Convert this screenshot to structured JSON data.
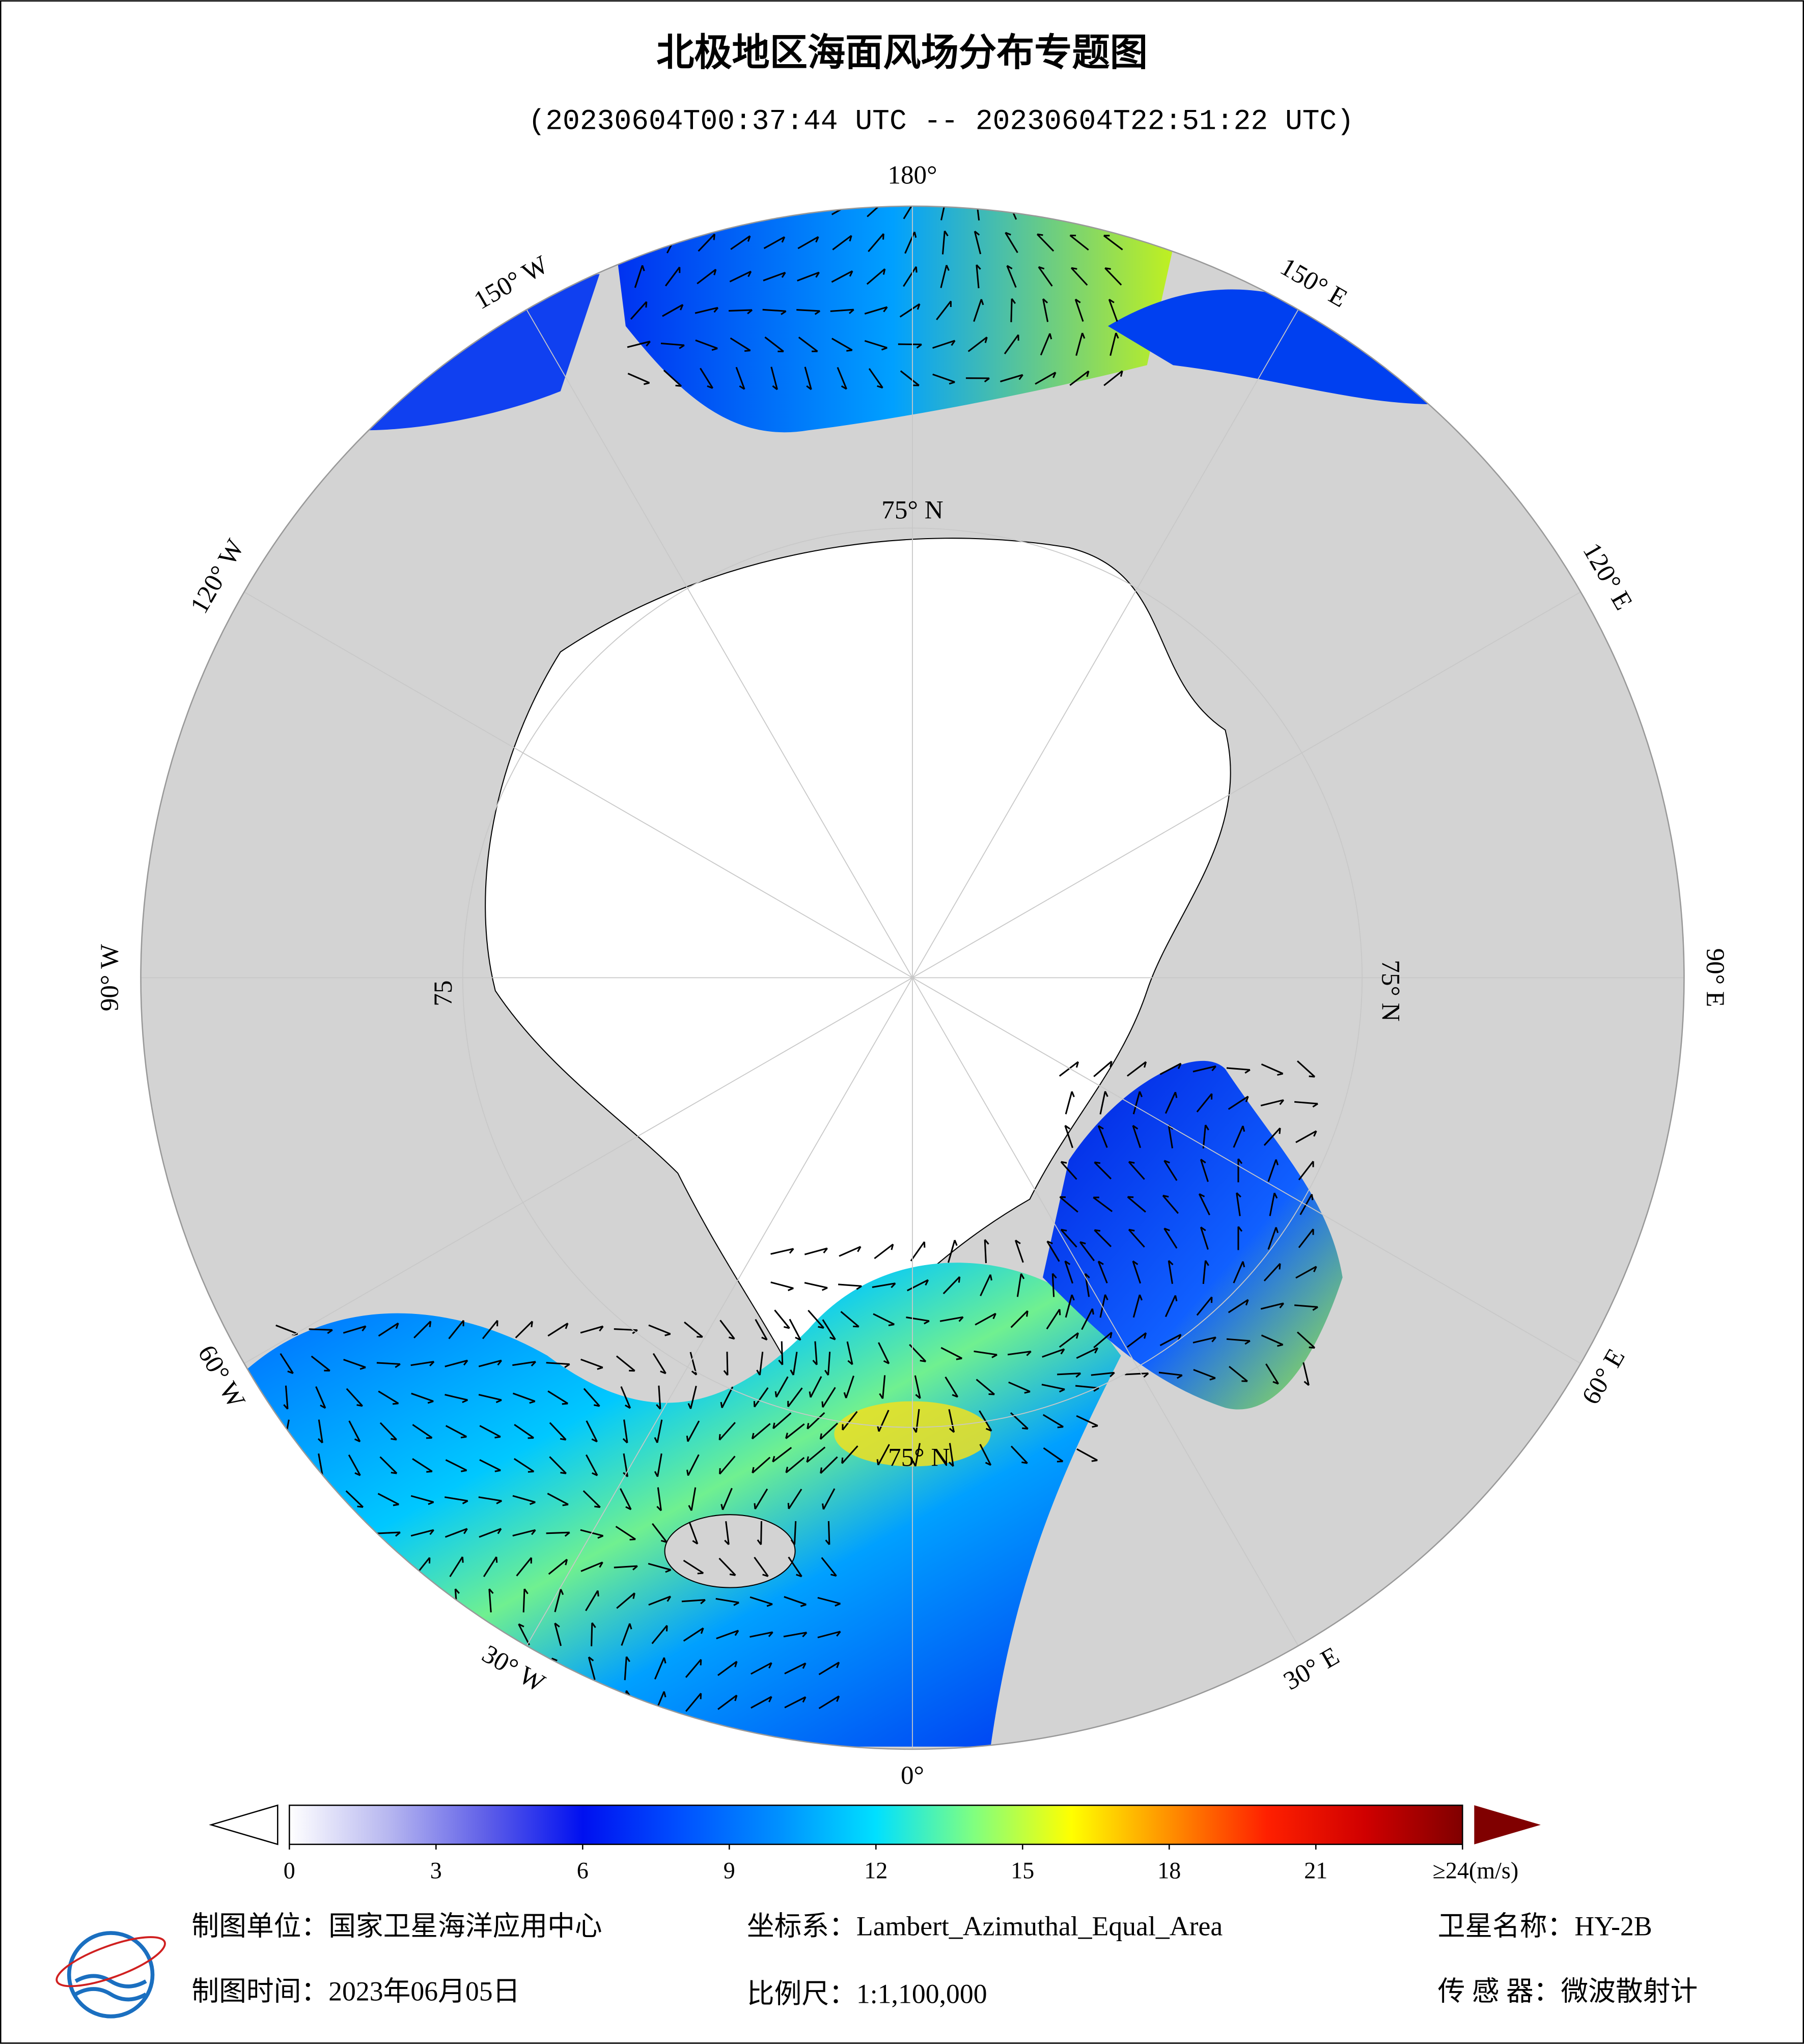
{
  "header": {
    "title": "北极地区海面风场分布专题图",
    "subtitle": "(20230604T00:37:44 UTC -- 20230604T22:51:22 UTC)"
  },
  "map": {
    "longitude_labels": [
      "180°",
      "150° E",
      "120° E",
      "90° E",
      "60° E",
      "30° E",
      "0°",
      "30° W",
      "60° W",
      "90° W",
      "120° W",
      "150° W"
    ],
    "latitude_labels": [
      "75° N",
      "75° N",
      "75° N",
      "75"
    ]
  },
  "colorbar": {
    "colors": [
      "#ffffff",
      "#b8b8f0",
      "#6060e8",
      "#0010f0",
      "#0050ff",
      "#0090ff",
      "#00e0ff",
      "#80ff80",
      "#ffff00",
      "#ff9000",
      "#ff2000",
      "#d00000",
      "#800000"
    ],
    "ticks": [
      0,
      3,
      6,
      9,
      12,
      15,
      18,
      21,
      {
        "value": 24,
        "label": "≥24(m/s)"
      }
    ],
    "lim": [
      0,
      24
    ]
  },
  "footer": {
    "unit": "制图单位：国家卫星海洋应用中心",
    "projection": "坐标系：Lambert_Azimuthal_Equal_Area",
    "satellite": "卫星名称：HY-2B",
    "date": "制图时间：2023年06月05日",
    "scale": "比例尺：1:1,100,000",
    "sensor": "传 感 器：微波散射计"
  }
}
